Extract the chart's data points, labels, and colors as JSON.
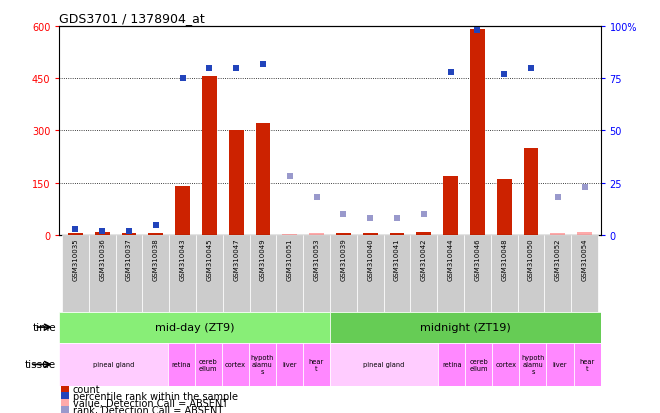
{
  "title": "GDS3701 / 1378904_at",
  "samples": [
    "GSM310035",
    "GSM310036",
    "GSM310037",
    "GSM310038",
    "GSM310043",
    "GSM310045",
    "GSM310047",
    "GSM310049",
    "GSM310051",
    "GSM310053",
    "GSM310039",
    "GSM310040",
    "GSM310041",
    "GSM310042",
    "GSM310044",
    "GSM310046",
    "GSM310048",
    "GSM310050",
    "GSM310052",
    "GSM310054"
  ],
  "count_values": [
    5,
    8,
    5,
    6,
    140,
    455,
    300,
    320,
    3,
    5,
    5,
    5,
    5,
    8,
    170,
    590,
    160,
    250,
    5,
    8
  ],
  "count_absent_flag": [
    false,
    false,
    false,
    false,
    false,
    false,
    false,
    false,
    true,
    true,
    false,
    false,
    false,
    false,
    false,
    false,
    false,
    false,
    true,
    true
  ],
  "rank_values": [
    3,
    2,
    2,
    5,
    75,
    80,
    80,
    82,
    28,
    18,
    10,
    8,
    8,
    10,
    78,
    98,
    77,
    80,
    18,
    23
  ],
  "rank_absent_flag": [
    false,
    false,
    false,
    false,
    false,
    false,
    false,
    false,
    true,
    true,
    true,
    true,
    true,
    true,
    false,
    false,
    false,
    false,
    true,
    true
  ],
  "time_groups": [
    {
      "label": "mid-day (ZT9)",
      "start": 0,
      "end": 10,
      "color": "#88ee77"
    },
    {
      "label": "midnight (ZT19)",
      "start": 10,
      "end": 20,
      "color": "#66cc55"
    }
  ],
  "tissue_groups": [
    {
      "label": "pineal gland",
      "start": 0,
      "end": 4,
      "color": "#ffccff"
    },
    {
      "label": "retina",
      "start": 4,
      "end": 5,
      "color": "#ff88ff"
    },
    {
      "label": "cereb\nellum",
      "start": 5,
      "end": 6,
      "color": "#ff88ff"
    },
    {
      "label": "cortex",
      "start": 6,
      "end": 7,
      "color": "#ff88ff"
    },
    {
      "label": "hypoth\nalamu\ns",
      "start": 7,
      "end": 8,
      "color": "#ff88ff"
    },
    {
      "label": "liver",
      "start": 8,
      "end": 9,
      "color": "#ff88ff"
    },
    {
      "label": "hear\nt",
      "start": 9,
      "end": 10,
      "color": "#ff88ff"
    },
    {
      "label": "pineal gland",
      "start": 10,
      "end": 14,
      "color": "#ffccff"
    },
    {
      "label": "retina",
      "start": 14,
      "end": 15,
      "color": "#ff88ff"
    },
    {
      "label": "cereb\nellum",
      "start": 15,
      "end": 16,
      "color": "#ff88ff"
    },
    {
      "label": "cortex",
      "start": 16,
      "end": 17,
      "color": "#ff88ff"
    },
    {
      "label": "hypoth\nalamu\ns",
      "start": 17,
      "end": 18,
      "color": "#ff88ff"
    },
    {
      "label": "liver",
      "start": 18,
      "end": 19,
      "color": "#ff88ff"
    },
    {
      "label": "hear\nt",
      "start": 19,
      "end": 20,
      "color": "#ff88ff"
    }
  ],
  "ylim_left": [
    0,
    600
  ],
  "ylim_right": [
    0,
    100
  ],
  "yticks_left": [
    0,
    150,
    300,
    450,
    600
  ],
  "yticks_right": [
    0,
    25,
    50,
    75,
    100
  ],
  "bar_color": "#cc2200",
  "bar_absent_color": "#ffaaaa",
  "rank_color": "#2244bb",
  "rank_absent_color": "#9999cc",
  "bg_color": "#ffffff",
  "xlabel_bg": "#cccccc",
  "grid_yticks": [
    150,
    300,
    450
  ]
}
